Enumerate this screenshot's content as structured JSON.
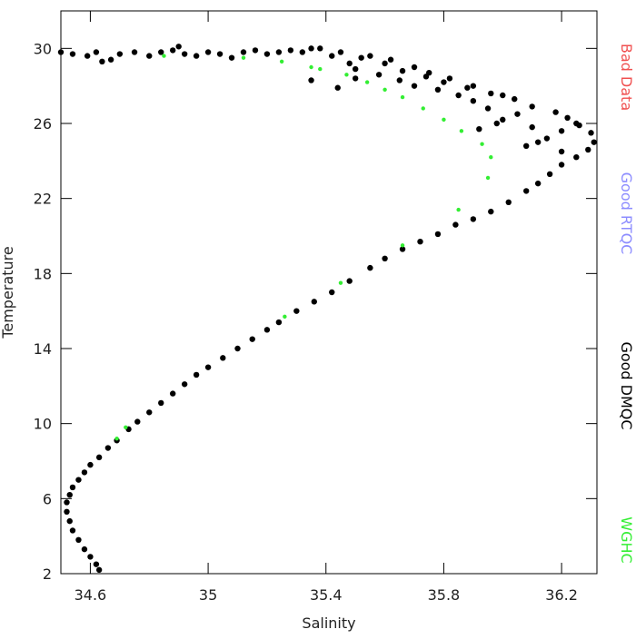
{
  "chart_data": {
    "type": "scatter",
    "xlabel": "Salinity",
    "ylabel": "Temperature",
    "xlim": [
      34.5,
      36.32
    ],
    "xticks": [
      34.6,
      35.0,
      35.4,
      35.8,
      36.2
    ],
    "ylim": [
      2,
      32
    ],
    "yticks": [
      2,
      6,
      10,
      14,
      18,
      22,
      26,
      30
    ],
    "legend": "right",
    "series": [
      {
        "name": "Bad Data",
        "color": "#f05050",
        "x": [],
        "y": []
      },
      {
        "name": "Good RTQC",
        "color": "#8c8cff",
        "x": [],
        "y": []
      },
      {
        "name": "Good DMQC",
        "color": "#000000",
        "x": [
          34.63,
          34.62,
          34.6,
          34.58,
          34.56,
          34.54,
          34.53,
          34.52,
          34.52,
          34.53,
          34.54,
          34.56,
          34.58,
          34.6,
          34.63,
          34.66,
          34.69,
          34.73,
          34.76,
          34.8,
          34.84,
          34.88,
          34.92,
          34.96,
          35.0,
          35.05,
          35.1,
          35.15,
          35.2,
          35.24,
          35.3,
          35.36,
          35.42,
          35.48,
          35.55,
          35.6,
          35.66,
          35.72,
          35.78,
          35.84,
          35.9,
          35.96,
          36.02,
          36.08,
          36.12,
          36.16,
          36.2,
          36.25,
          36.29,
          36.31,
          36.3,
          36.26,
          36.22,
          36.18,
          36.1,
          36.04,
          35.96,
          35.88,
          35.8,
          35.74,
          35.66,
          35.6,
          35.52,
          35.45,
          35.38,
          36.2,
          36.15,
          36.1,
          36.0,
          35.95,
          36.05,
          36.12,
          35.9,
          35.85,
          35.78,
          35.7,
          35.65,
          35.58,
          35.5,
          35.55,
          35.62,
          35.7,
          35.75,
          35.82,
          35.9,
          36.0,
          35.98,
          35.92,
          36.08,
          36.2,
          36.25,
          35.48,
          35.42,
          35.35,
          35.44,
          35.5,
          34.5,
          34.54,
          34.59,
          34.62,
          34.67,
          34.7,
          34.75,
          34.8,
          34.84,
          34.88,
          34.92,
          34.96,
          35.0,
          35.04,
          35.08,
          35.12,
          35.16,
          35.2,
          35.24,
          35.28,
          35.32,
          35.35,
          34.64,
          34.9
        ],
        "y": [
          2.2,
          2.5,
          2.9,
          3.3,
          3.8,
          4.3,
          4.8,
          5.3,
          5.8,
          6.2,
          6.6,
          7.0,
          7.4,
          7.8,
          8.2,
          8.7,
          9.1,
          9.7,
          10.1,
          10.6,
          11.1,
          11.6,
          12.1,
          12.6,
          13.0,
          13.5,
          14.0,
          14.5,
          15.0,
          15.4,
          16.0,
          16.5,
          17.0,
          17.6,
          18.3,
          18.8,
          19.3,
          19.7,
          20.1,
          20.6,
          20.9,
          21.3,
          21.8,
          22.4,
          22.8,
          23.3,
          23.8,
          24.2,
          24.6,
          25.0,
          25.5,
          25.9,
          26.3,
          26.6,
          26.9,
          27.3,
          27.6,
          27.9,
          28.2,
          28.5,
          28.8,
          29.2,
          29.5,
          29.8,
          30.0,
          24.5,
          25.2,
          25.8,
          26.2,
          26.8,
          26.5,
          25.0,
          27.2,
          27.5,
          27.8,
          28.0,
          28.3,
          28.6,
          28.9,
          29.6,
          29.4,
          29.0,
          28.7,
          28.4,
          28.0,
          27.5,
          26.0,
          25.7,
          24.8,
          25.6,
          26.0,
          29.2,
          29.6,
          28.3,
          27.9,
          28.4,
          29.8,
          29.7,
          29.6,
          29.8,
          29.4,
          29.7,
          29.8,
          29.6,
          29.8,
          29.9,
          29.7,
          29.6,
          29.8,
          29.7,
          29.5,
          29.8,
          29.9,
          29.7,
          29.8,
          29.9,
          29.8,
          30.0,
          29.3,
          30.1
        ]
      },
      {
        "name": "WGHC",
        "color": "#33ee33",
        "x": [
          34.72,
          34.69,
          35.26,
          35.45,
          35.66,
          35.85,
          35.95,
          35.96,
          35.93,
          35.86,
          35.8,
          35.73,
          35.66,
          35.6,
          35.54,
          35.47,
          35.38,
          35.25,
          35.12,
          34.85,
          35.35
        ],
        "y": [
          9.8,
          9.2,
          15.7,
          17.5,
          19.5,
          21.4,
          23.1,
          24.2,
          24.9,
          25.6,
          26.2,
          26.8,
          27.4,
          27.8,
          28.2,
          28.6,
          28.9,
          29.3,
          29.5,
          29.6,
          29.0
        ]
      }
    ]
  }
}
